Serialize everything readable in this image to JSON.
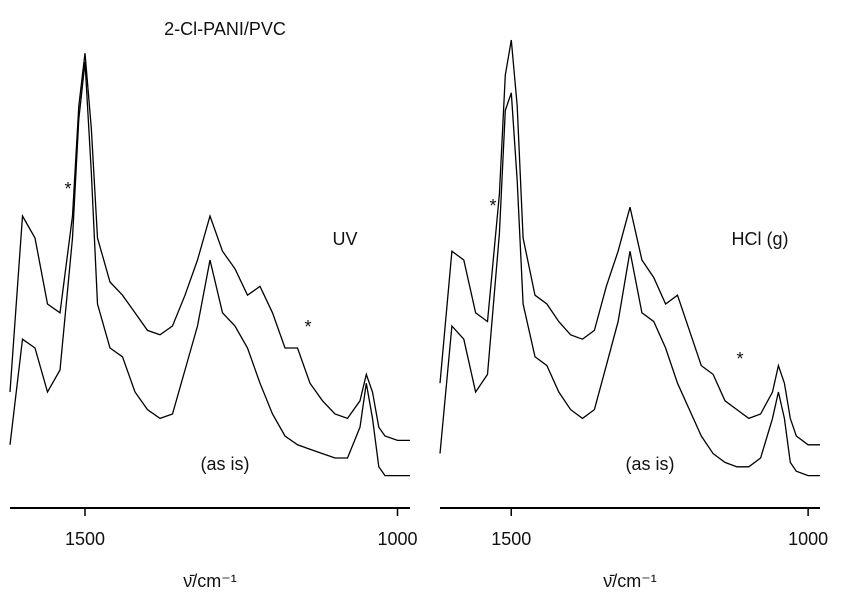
{
  "title": "2-Cl-PANI/PVC",
  "chart_data": [
    {
      "type": "line",
      "x_label": "ν̄/cm⁻¹",
      "annotations": [
        "*",
        "*",
        "UV",
        "(as is)"
      ],
      "x": [
        1620,
        1600,
        1580,
        1560,
        1540,
        1520,
        1510,
        1500,
        1490,
        1480,
        1460,
        1440,
        1420,
        1400,
        1380,
        1360,
        1340,
        1320,
        1300,
        1280,
        1260,
        1240,
        1220,
        1200,
        1180,
        1160,
        1140,
        1120,
        1100,
        1080,
        1060,
        1050,
        1040,
        1030,
        1020,
        1000,
        980
      ],
      "series": [
        {
          "color": "#000000",
          "values": [
            20,
            60,
            55,
            40,
            38,
            60,
            85,
            97,
            80,
            55,
            45,
            42,
            38,
            34,
            33,
            35,
            42,
            50,
            60,
            52,
            48,
            42,
            44,
            38,
            30,
            30,
            22,
            18,
            15,
            14,
            18,
            24,
            20,
            12,
            10,
            9,
            9
          ]
        },
        {
          "color": "#000000",
          "values": [
            8,
            32,
            30,
            20,
            25,
            55,
            82,
            95,
            70,
            40,
            30,
            28,
            20,
            16,
            14,
            15,
            25,
            35,
            50,
            38,
            35,
            30,
            22,
            15,
            10,
            8,
            7,
            6,
            5,
            5,
            12,
            22,
            14,
            3,
            1,
            1,
            1
          ]
        }
      ],
      "xlim": [
        1620,
        980
      ],
      "xticks": [
        1500,
        1000
      ],
      "ylim": [
        0,
        100
      ]
    },
    {
      "type": "line",
      "x_label": "ν̄/cm⁻¹",
      "annotations": [
        "*",
        "*",
        "HCl (g)",
        "(as is)"
      ],
      "x": [
        1620,
        1600,
        1580,
        1560,
        1540,
        1520,
        1510,
        1500,
        1490,
        1480,
        1460,
        1440,
        1420,
        1400,
        1380,
        1360,
        1340,
        1320,
        1300,
        1280,
        1260,
        1240,
        1220,
        1200,
        1180,
        1160,
        1140,
        1120,
        1100,
        1080,
        1060,
        1050,
        1040,
        1030,
        1020,
        1000,
        980
      ],
      "series": [
        {
          "color": "#000000",
          "values": [
            22,
            52,
            50,
            38,
            36,
            65,
            92,
            100,
            85,
            55,
            42,
            40,
            36,
            33,
            32,
            34,
            44,
            52,
            62,
            50,
            46,
            40,
            42,
            34,
            26,
            24,
            18,
            16,
            14,
            15,
            20,
            26,
            22,
            14,
            10,
            8,
            8
          ]
        },
        {
          "color": "#000000",
          "values": [
            6,
            35,
            32,
            20,
            24,
            56,
            84,
            88,
            68,
            40,
            28,
            26,
            20,
            16,
            14,
            16,
            26,
            36,
            52,
            38,
            36,
            30,
            22,
            16,
            10,
            6,
            4,
            3,
            3,
            5,
            14,
            20,
            14,
            4,
            2,
            1,
            1
          ]
        }
      ],
      "xlim": [
        1620,
        980
      ],
      "xticks": [
        1500,
        1000
      ],
      "ylim": [
        0,
        100
      ]
    }
  ]
}
